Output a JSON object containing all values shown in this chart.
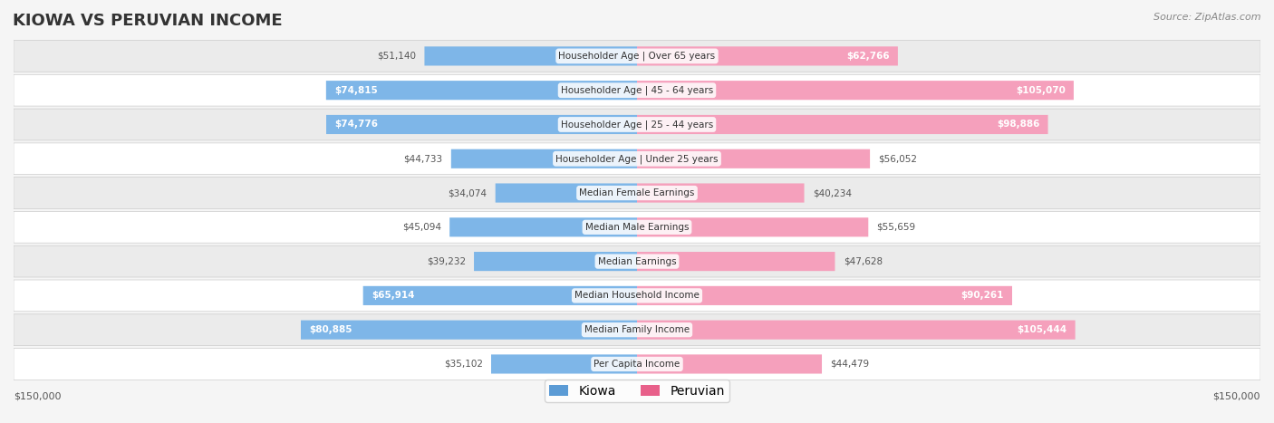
{
  "title": "KIOWA VS PERUVIAN INCOME",
  "source": "Source: ZipAtlas.com",
  "categories": [
    "Per Capita Income",
    "Median Family Income",
    "Median Household Income",
    "Median Earnings",
    "Median Male Earnings",
    "Median Female Earnings",
    "Householder Age | Under 25 years",
    "Householder Age | 25 - 44 years",
    "Householder Age | 45 - 64 years",
    "Householder Age | Over 65 years"
  ],
  "kiowa_values": [
    35102,
    80885,
    65914,
    39232,
    45094,
    34074,
    44733,
    74776,
    74815,
    51140
  ],
  "peruvian_values": [
    44479,
    105444,
    90261,
    47628,
    55659,
    40234,
    56052,
    98886,
    105070,
    62766
  ],
  "kiowa_color": "#7EB6E8",
  "kiowa_color_dark": "#5B9BD5",
  "peruvian_color": "#F5A0BC",
  "peruvian_color_dark": "#E8608A",
  "max_val": 150000,
  "bg_color": "#f5f5f5",
  "row_bg": "#ffffff",
  "row_alt_bg": "#f0f0f0",
  "label_fontsize": 9,
  "title_fontsize": 13,
  "legend_fontsize": 10
}
